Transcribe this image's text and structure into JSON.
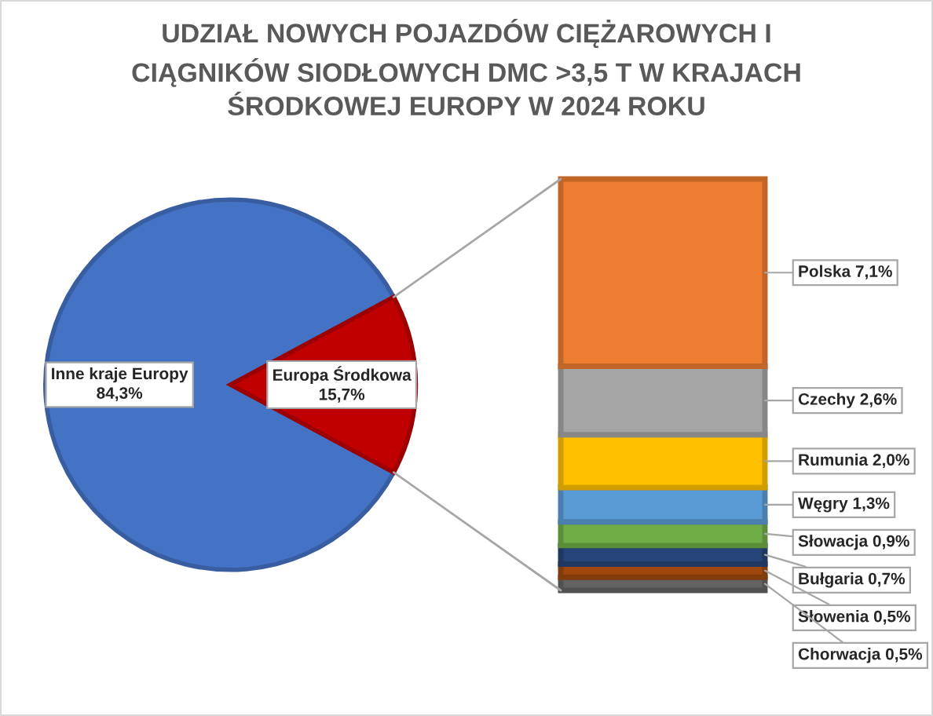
{
  "chart_data": [
    {
      "type": "pie",
      "title": "UDZIAŁ NOWYCH POJAZDÓW CIĘŻAROWYCH I\nCIĄGNIKÓW SIODŁOWYCH DMC >3,5 T W KRAJACH\nŚRODKOWEJ EUROPY W 2024 ROKU",
      "categories": [
        "Inne kraje Europy",
        "Europa Środkowa"
      ],
      "values": [
        84.3,
        15.7
      ],
      "colors": [
        "#4472c4",
        "#c00000"
      ],
      "value_labels": [
        "84,3%",
        "15,7%"
      ]
    },
    {
      "type": "bar",
      "stacked": true,
      "categories": [
        null
      ],
      "series": [
        {
          "color": "#636363",
          "values": [
            0.5
          ],
          "value_labels": [
            "Chorwacja 0,5%"
          ]
        },
        {
          "color": "#9e480e",
          "values": [
            0.5
          ],
          "value_labels": [
            "Słowenia 0,5%"
          ]
        },
        {
          "color": "#264478",
          "values": [
            0.7
          ],
          "value_labels": [
            "Bułgaria 0,7%"
          ]
        },
        {
          "color": "#70ad47",
          "values": [
            0.9
          ],
          "value_labels": [
            "Słowacja 0,9%"
          ]
        },
        {
          "color": "#5b9bd5",
          "values": [
            1.3
          ],
          "value_labels": [
            "Węgry 1,3%"
          ]
        },
        {
          "color": "#ffc000",
          "values": [
            2.0
          ],
          "value_labels": [
            "Rumunia 2,0%"
          ]
        },
        {
          "color": "#a5a5a5",
          "values": [
            2.6
          ],
          "value_labels": [
            "Czechy 2,6%"
          ]
        },
        {
          "color": "#ed7d31",
          "values": [
            7.1
          ],
          "value_labels": [
            "Polska 7,1%"
          ]
        }
      ]
    }
  ]
}
